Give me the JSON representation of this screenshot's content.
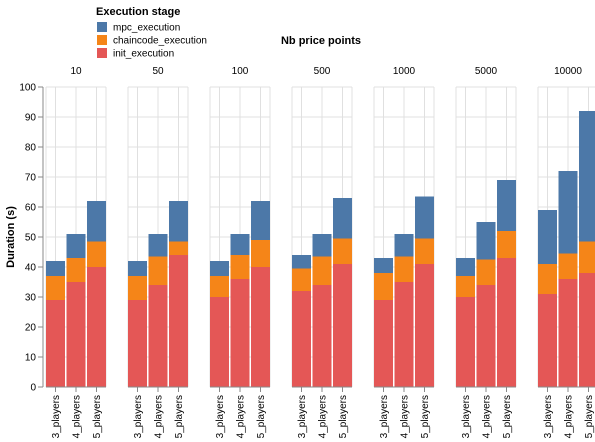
{
  "chart_data": {
    "type": "bar",
    "stacked": true,
    "faceted": true,
    "facet_title": "Nb price points",
    "facets": [
      "10",
      "50",
      "100",
      "500",
      "1000",
      "5000",
      "10000"
    ],
    "categories": [
      "3_players",
      "4_players",
      "5_players"
    ],
    "ylabel": "Duration (s)",
    "xlabel": "",
    "ylim": [
      0,
      100
    ],
    "yticks": [
      0,
      10,
      20,
      30,
      40,
      50,
      60,
      70,
      80,
      90,
      100
    ],
    "grid": true,
    "legend": {
      "title": "Execution stage",
      "placement": "top-left",
      "entries": [
        "mpc_execution",
        "chaincode_execution",
        "init_execution"
      ]
    },
    "series": [
      {
        "name": "init_execution",
        "color": "#e45756",
        "values": [
          [
            29,
            35,
            40
          ],
          [
            29,
            34,
            44
          ],
          [
            30,
            36,
            40
          ],
          [
            32,
            34,
            41
          ],
          [
            29,
            35,
            41
          ],
          [
            30,
            34,
            43
          ],
          [
            31,
            36,
            38
          ]
        ]
      },
      {
        "name": "chaincode_execution",
        "color": "#f58518",
        "values": [
          [
            8,
            8,
            8.5
          ],
          [
            8,
            9.5,
            4.5
          ],
          [
            7,
            8,
            9
          ],
          [
            7.5,
            9.5,
            8.5
          ],
          [
            9,
            8.5,
            8.5
          ],
          [
            7,
            8.5,
            9
          ],
          [
            10,
            8.5,
            10.5
          ]
        ]
      },
      {
        "name": "mpc_execution",
        "color": "#4c78a8",
        "values": [
          [
            5,
            8,
            13.5
          ],
          [
            5,
            7.5,
            13.5
          ],
          [
            5,
            7,
            13
          ],
          [
            4.5,
            7.5,
            13.5
          ],
          [
            5,
            7.5,
            14
          ],
          [
            6,
            12.5,
            17
          ],
          [
            18,
            27.5,
            43.5
          ]
        ]
      }
    ]
  }
}
